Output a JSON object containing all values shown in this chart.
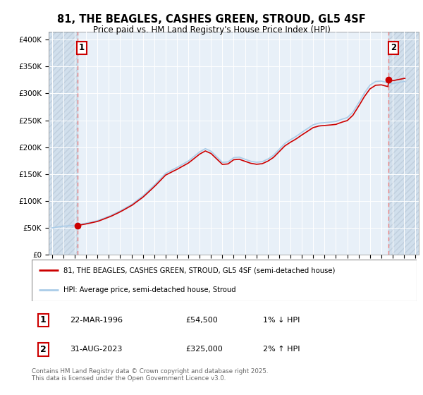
{
  "title_line1": "81, THE BEAGLES, CASHES GREEN, STROUD, GL5 4SF",
  "title_line2": "Price paid vs. HM Land Registry's House Price Index (HPI)",
  "ylabel_ticks": [
    "£0",
    "£50K",
    "£100K",
    "£150K",
    "£200K",
    "£250K",
    "£300K",
    "£350K",
    "£400K"
  ],
  "ytick_values": [
    0,
    50000,
    100000,
    150000,
    200000,
    250000,
    300000,
    350000,
    400000
  ],
  "ylim": [
    0,
    415000
  ],
  "xlim_start": 1993.7,
  "xlim_end": 2026.3,
  "hpi_color": "#aacce8",
  "price_color": "#cc0000",
  "dashed_line_color": "#e88080",
  "marker_color": "#cc0000",
  "bg_color": "#e8f0f8",
  "legend_line1": "81, THE BEAGLES, CASHES GREEN, STROUD, GL5 4SF (semi-detached house)",
  "legend_line2": "HPI: Average price, semi-detached house, Stroud",
  "annotation1_label": "1",
  "annotation1_date": "22-MAR-1996",
  "annotation1_price": "£54,500",
  "annotation1_hpi": "1% ↓ HPI",
  "annotation2_label": "2",
  "annotation2_date": "31-AUG-2023",
  "annotation2_price": "£325,000",
  "annotation2_hpi": "2% ↑ HPI",
  "footnote": "Contains HM Land Registry data © Crown copyright and database right 2025.\nThis data is licensed under the Open Government Licence v3.0.",
  "purchase1_year": 1996.22,
  "purchase1_price": 54500,
  "purchase2_year": 2023.66,
  "purchase2_price": 325000
}
